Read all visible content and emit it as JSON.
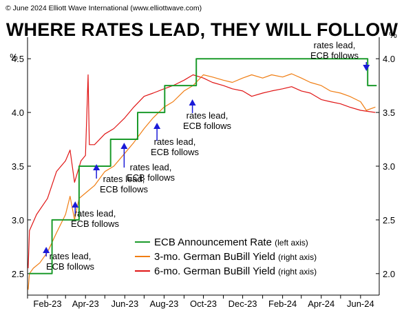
{
  "header": {
    "copyright": "© June 2024 Elliott Wave International (www.elliottwave.com)",
    "title": "WHERE RATES LEAD, THEY WILL FOLLOW"
  },
  "chart_data": {
    "type": "line",
    "title": "WHERE RATES LEAD, THEY WILL FOLLOW",
    "x_range": [
      "2023-01-01",
      "2024-06-30"
    ],
    "x_ticks": [
      {
        "date": "2023-02-01",
        "label": "Feb-23"
      },
      {
        "date": "2023-04-01",
        "label": "Apr-23"
      },
      {
        "date": "2023-06-01",
        "label": "Jun-23"
      },
      {
        "date": "2023-08-01",
        "label": "Aug-23"
      },
      {
        "date": "2023-10-01",
        "label": "Oct-23"
      },
      {
        "date": "2023-12-01",
        "label": "Dec-23"
      },
      {
        "date": "2024-02-01",
        "label": "Feb-24"
      },
      {
        "date": "2024-04-01",
        "label": "Apr-24"
      },
      {
        "date": "2024-06-01",
        "label": "Jun-24"
      }
    ],
    "left_axis": {
      "unit": "%",
      "ylim": [
        2.3,
        4.7
      ],
      "ticks": [
        "2.5",
        "3.0",
        "3.5",
        "4.0",
        "4.5"
      ]
    },
    "right_axis": {
      "unit": "%",
      "ylim": [
        1.8,
        4.2
      ],
      "ticks": [
        "2.0",
        "2.5",
        "3.0",
        "3.5",
        "4.0"
      ]
    },
    "legend": {
      "placement": "bottom-right"
    },
    "series": [
      {
        "name": "ECB Announcement Rate",
        "axis_note": "(left axis)",
        "axis": "left",
        "color": "#1a9a2a",
        "step": true,
        "points": [
          [
            "2023-01-03",
            2.5
          ],
          [
            "2023-02-08",
            3.0
          ],
          [
            "2023-03-22",
            3.5
          ],
          [
            "2023-05-10",
            3.75
          ],
          [
            "2023-06-21",
            4.0
          ],
          [
            "2023-08-02",
            4.25
          ],
          [
            "2023-09-20",
            4.5
          ],
          [
            "2024-06-12",
            4.25
          ],
          [
            "2024-06-26",
            4.25
          ]
        ]
      },
      {
        "name": "3-mo. German BuBill Yield",
        "axis_note": "(right axis)",
        "axis": "right",
        "color": "#f07d12",
        "step": false,
        "points": [
          [
            "2023-01-02",
            1.85
          ],
          [
            "2023-01-04",
            2.0
          ],
          [
            "2023-01-10",
            2.05
          ],
          [
            "2023-01-20",
            2.1
          ],
          [
            "2023-02-01",
            2.2
          ],
          [
            "2023-02-15",
            2.38
          ],
          [
            "2023-03-01",
            2.55
          ],
          [
            "2023-03-08",
            2.72
          ],
          [
            "2023-03-15",
            2.5
          ],
          [
            "2023-03-22",
            2.7
          ],
          [
            "2023-04-01",
            2.75
          ],
          [
            "2023-04-15",
            2.82
          ],
          [
            "2023-05-01",
            2.95
          ],
          [
            "2023-05-15",
            3.0
          ],
          [
            "2023-06-01",
            3.12
          ],
          [
            "2023-06-15",
            3.22
          ],
          [
            "2023-07-01",
            3.35
          ],
          [
            "2023-07-15",
            3.45
          ],
          [
            "2023-08-01",
            3.55
          ],
          [
            "2023-08-15",
            3.6
          ],
          [
            "2023-09-01",
            3.7
          ],
          [
            "2023-09-15",
            3.75
          ],
          [
            "2023-10-01",
            3.85
          ],
          [
            "2023-10-15",
            3.83
          ],
          [
            "2023-11-01",
            3.8
          ],
          [
            "2023-11-15",
            3.78
          ],
          [
            "2023-12-01",
            3.82
          ],
          [
            "2023-12-15",
            3.85
          ],
          [
            "2024-01-01",
            3.82
          ],
          [
            "2024-01-15",
            3.85
          ],
          [
            "2024-02-01",
            3.83
          ],
          [
            "2024-02-15",
            3.86
          ],
          [
            "2024-03-01",
            3.82
          ],
          [
            "2024-03-15",
            3.78
          ],
          [
            "2024-04-01",
            3.75
          ],
          [
            "2024-04-15",
            3.7
          ],
          [
            "2024-05-01",
            3.68
          ],
          [
            "2024-05-15",
            3.65
          ],
          [
            "2024-06-01",
            3.6
          ],
          [
            "2024-06-10",
            3.52
          ],
          [
            "2024-06-24",
            3.55
          ]
        ]
      },
      {
        "name": "6-mo. German BuBill Yield",
        "axis_note": "(right axis)",
        "axis": "right",
        "color": "#e01414",
        "step": false,
        "points": [
          [
            "2023-01-02",
            2.05
          ],
          [
            "2023-01-04",
            2.4
          ],
          [
            "2023-01-15",
            2.55
          ],
          [
            "2023-02-01",
            2.7
          ],
          [
            "2023-02-15",
            2.95
          ],
          [
            "2023-03-01",
            3.05
          ],
          [
            "2023-03-08",
            3.15
          ],
          [
            "2023-03-15",
            2.85
          ],
          [
            "2023-03-25",
            3.05
          ],
          [
            "2023-04-01",
            3.1
          ],
          [
            "2023-04-05",
            3.85
          ],
          [
            "2023-04-07",
            3.2
          ],
          [
            "2023-04-15",
            3.2
          ],
          [
            "2023-05-01",
            3.3
          ],
          [
            "2023-05-15",
            3.35
          ],
          [
            "2023-06-01",
            3.45
          ],
          [
            "2023-06-15",
            3.55
          ],
          [
            "2023-07-01",
            3.65
          ],
          [
            "2023-07-15",
            3.68
          ],
          [
            "2023-08-01",
            3.72
          ],
          [
            "2023-08-15",
            3.75
          ],
          [
            "2023-09-01",
            3.8
          ],
          [
            "2023-09-15",
            3.85
          ],
          [
            "2023-10-01",
            3.82
          ],
          [
            "2023-10-15",
            3.78
          ],
          [
            "2023-11-01",
            3.75
          ],
          [
            "2023-11-15",
            3.72
          ],
          [
            "2023-12-01",
            3.7
          ],
          [
            "2023-12-15",
            3.65
          ],
          [
            "2024-01-01",
            3.68
          ],
          [
            "2024-01-15",
            3.7
          ],
          [
            "2024-02-01",
            3.72
          ],
          [
            "2024-02-15",
            3.74
          ],
          [
            "2024-03-01",
            3.7
          ],
          [
            "2024-03-15",
            3.68
          ],
          [
            "2024-04-01",
            3.62
          ],
          [
            "2024-04-15",
            3.6
          ],
          [
            "2024-05-01",
            3.58
          ],
          [
            "2024-05-15",
            3.55
          ],
          [
            "2024-06-01",
            3.52
          ],
          [
            "2024-06-24",
            3.5
          ]
        ]
      }
    ],
    "annotations": [
      {
        "text": [
          "rates lead,",
          "ECB follows"
        ],
        "arrow_date": "2023-01-30",
        "arrow_direction": "up"
      },
      {
        "text": [
          "rates lead,",
          "ECB follows"
        ],
        "arrow_date": "2023-03-16",
        "arrow_direction": "up"
      },
      {
        "text": [
          "rates lead,",
          "ECB follows"
        ],
        "arrow_date": "2023-04-18",
        "arrow_direction": "up"
      },
      {
        "text": [
          "rates lead,",
          "ECB follows"
        ],
        "arrow_date": "2023-05-31",
        "arrow_direction": "up"
      },
      {
        "text": [
          "rates lead,",
          "ECB follows"
        ],
        "arrow_date": "2023-07-21",
        "arrow_direction": "up"
      },
      {
        "text": [
          "rates lead,",
          "ECB follows"
        ],
        "arrow_date": "2023-09-14",
        "arrow_direction": "up"
      },
      {
        "text": [
          "rates lead,",
          "ECB follows"
        ],
        "arrow_date": "2024-06-10",
        "arrow_direction": "down"
      }
    ]
  }
}
